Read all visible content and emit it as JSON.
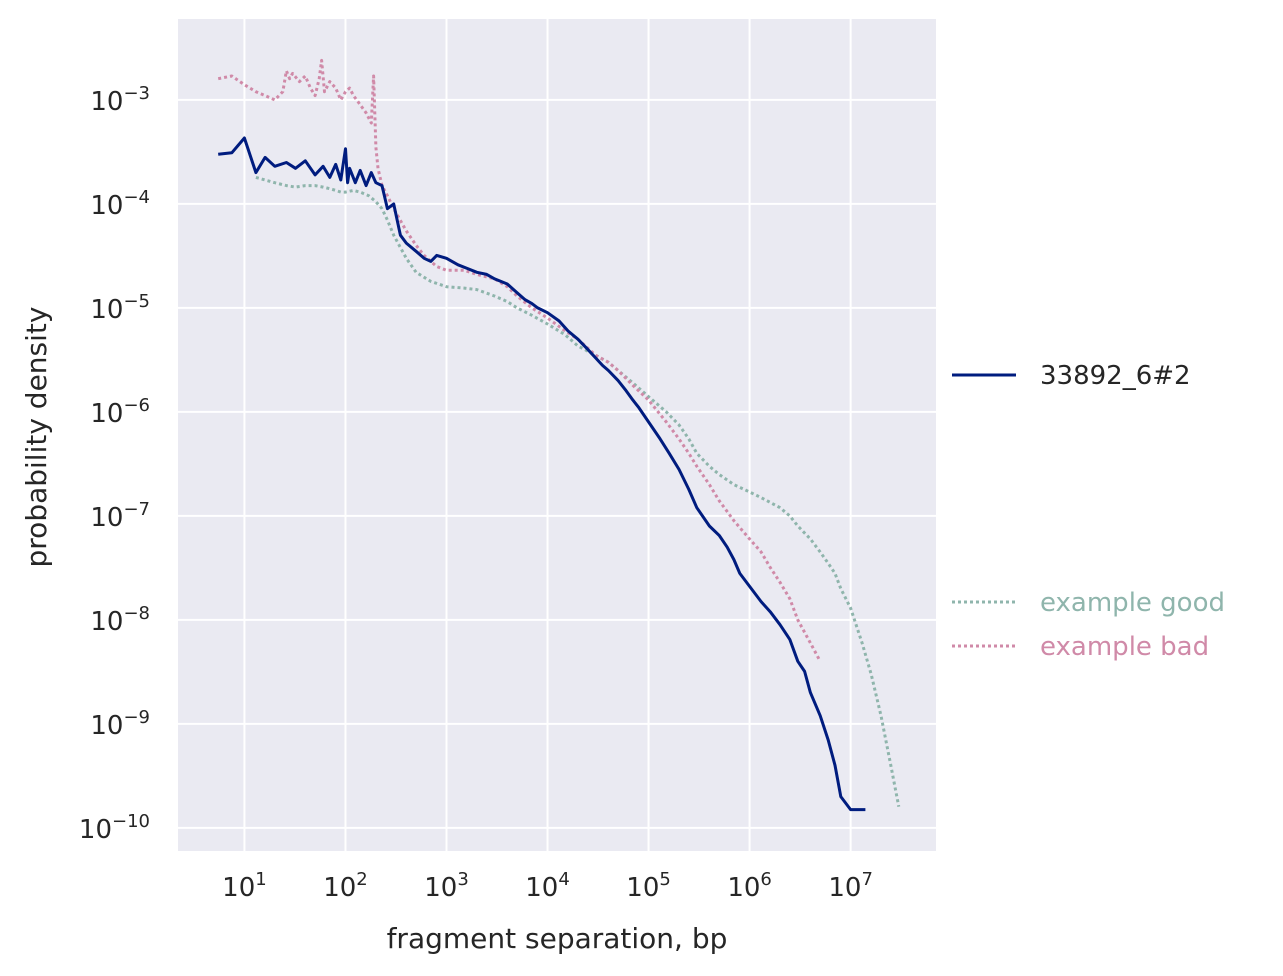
{
  "chart_data": {
    "type": "line",
    "title": "",
    "xlabel": "fragment separation, bp",
    "ylabel": "probability density",
    "xscale": "log",
    "yscale": "log",
    "xlim": [
      2.2,
      70000000
    ],
    "ylim": [
      6e-11,
      0.006
    ],
    "grid": true,
    "x_ticks": [
      {
        "base": "10",
        "exp": "1",
        "value": 10
      },
      {
        "base": "10",
        "exp": "2",
        "value": 100
      },
      {
        "base": "10",
        "exp": "3",
        "value": 1000
      },
      {
        "base": "10",
        "exp": "4",
        "value": 10000
      },
      {
        "base": "10",
        "exp": "5",
        "value": 100000
      },
      {
        "base": "10",
        "exp": "6",
        "value": 1000000
      },
      {
        "base": "10",
        "exp": "7",
        "value": 10000000
      }
    ],
    "y_ticks": [
      {
        "base": "10",
        "exp": "−10",
        "value": 1e-10
      },
      {
        "base": "10",
        "exp": "−9",
        "value": 1e-09
      },
      {
        "base": "10",
        "exp": "−8",
        "value": 1e-08
      },
      {
        "base": "10",
        "exp": "−7",
        "value": 1e-07
      },
      {
        "base": "10",
        "exp": "−6",
        "value": 1e-06
      },
      {
        "base": "10",
        "exp": "−5",
        "value": 1e-05
      },
      {
        "base": "10",
        "exp": "−4",
        "value": 0.0001
      },
      {
        "base": "10",
        "exp": "−3",
        "value": 0.001
      }
    ],
    "legend": [
      {
        "label": "33892_6#2",
        "color": "#001c7f",
        "style": "solid",
        "position": "right-middle"
      },
      {
        "label": "example good",
        "color": "#8fb5ac",
        "style": "dotted",
        "position": "right-lower"
      },
      {
        "label": "example bad",
        "color": "#d08aa8",
        "style": "dotted",
        "position": "right-lower"
      }
    ],
    "series": [
      {
        "name": "33892_6#2",
        "color": "#001c7f",
        "style": "solid",
        "x": [
          5.5,
          7.5,
          10,
          13,
          16,
          20,
          26,
          32,
          40,
          50,
          60,
          70,
          80,
          90,
          100,
          105,
          110,
          125,
          140,
          160,
          180,
          200,
          230,
          260,
          300,
          350,
          400,
          500,
          600,
          700,
          800,
          1000,
          1300,
          1600,
          2000,
          2500,
          3000,
          4000,
          5000,
          6000,
          7000,
          8000,
          10000,
          13000,
          16000,
          20000,
          25000,
          30000,
          35000,
          40000,
          50000,
          60000,
          70000,
          80000,
          100000,
          130000,
          160000,
          200000,
          250000,
          300000,
          400000,
          500000,
          600000,
          700000,
          800000,
          1000000,
          1300000,
          1600000,
          2000000,
          2500000,
          3000000,
          3500000,
          4000000,
          5000000,
          6000000,
          7000000,
          8000000,
          10000000,
          12000000,
          14000000
        ],
        "y": [
          0.0003,
          0.00031,
          0.00043,
          0.0002,
          0.00028,
          0.00023,
          0.00025,
          0.00022,
          0.00026,
          0.00019,
          0.00023,
          0.00018,
          0.00024,
          0.00017,
          0.00034,
          0.00016,
          0.00022,
          0.00016,
          0.00021,
          0.00015,
          0.0002,
          0.00016,
          0.00015,
          9e-05,
          0.0001,
          5e-05,
          4.2e-05,
          3.5e-05,
          3e-05,
          2.8e-05,
          3.2e-05,
          3e-05,
          2.6e-05,
          2.4e-05,
          2.2e-05,
          2.1e-05,
          1.9e-05,
          1.7e-05,
          1.4e-05,
          1.2e-05,
          1.1e-05,
          1e-05,
          9e-06,
          7.5e-06,
          6e-06,
          5e-06,
          4e-06,
          3.3e-06,
          2.8e-06,
          2.5e-06,
          2e-06,
          1.6e-06,
          1.3e-06,
          1.1e-06,
          8e-07,
          5.5e-07,
          4e-07,
          2.8e-07,
          1.8e-07,
          1.2e-07,
          8e-08,
          6.5e-08,
          5e-08,
          3.8e-08,
          2.8e-08,
          2.1e-08,
          1.5e-08,
          1.2e-08,
          9e-09,
          6.5e-09,
          4e-09,
          3.2e-09,
          2e-09,
          1.2e-09,
          7e-10,
          4e-10,
          2e-10,
          1.5e-10,
          1.5e-10,
          1.5e-10
        ]
      },
      {
        "name": "example good",
        "color": "#8fb5ac",
        "style": "dotted",
        "x": [
          13,
          16,
          20,
          26,
          32,
          40,
          50,
          60,
          70,
          80,
          90,
          100,
          120,
          140,
          170,
          200,
          230,
          260,
          300,
          400,
          500,
          700,
          1000,
          1500,
          2000,
          3000,
          4000,
          5000,
          7000,
          10000,
          15000,
          20000,
          30000,
          40000,
          50000,
          70000,
          100000,
          150000,
          200000,
          250000,
          300000,
          400000,
          500000,
          700000,
          1000000,
          1300000,
          1600000,
          2000000,
          2500000,
          3000000,
          4000000,
          5000000,
          6000000,
          7000000,
          8000000,
          10000000,
          13000000,
          16000000,
          20000000,
          25000000,
          30000000
        ],
        "y": [
          0.00018,
          0.00017,
          0.00016,
          0.00015,
          0.000145,
          0.00015,
          0.00015,
          0.000145,
          0.00014,
          0.000135,
          0.00013,
          0.00013,
          0.000135,
          0.00013,
          0.00012,
          0.000105,
          9e-05,
          7e-05,
          5e-05,
          3e-05,
          2.2e-05,
          1.8e-05,
          1.6e-05,
          1.55e-05,
          1.5e-05,
          1.3e-05,
          1.15e-05,
          1e-05,
          8.5e-06,
          7e-06,
          5.5e-06,
          4.3e-06,
          3.5e-06,
          3e-06,
          2.5e-06,
          1.9e-06,
          1.4e-06,
          1e-06,
          7.5e-07,
          5.5e-07,
          4e-07,
          3e-07,
          2.5e-07,
          2e-07,
          1.7e-07,
          1.5e-07,
          1.35e-07,
          1.2e-07,
          1e-07,
          8e-08,
          6e-08,
          4.5e-08,
          3.5e-08,
          2.8e-08,
          2e-08,
          1.3e-08,
          6e-09,
          3e-09,
          1.2e-09,
          4e-10,
          1.6e-10
        ]
      },
      {
        "name": "example bad",
        "color": "#d08aa8",
        "style": "dotted",
        "x": [
          5.5,
          7.5,
          10,
          13,
          16,
          20,
          24,
          26,
          28,
          30,
          35,
          40,
          45,
          50,
          55,
          58,
          62,
          70,
          80,
          90,
          100,
          110,
          120,
          140,
          160,
          180,
          190,
          200,
          210,
          230,
          260,
          300,
          400,
          500,
          600,
          700,
          800,
          1000,
          1500,
          2000,
          3000,
          4000,
          5000,
          7000,
          10000,
          15000,
          20000,
          30000,
          40000,
          50000,
          70000,
          100000,
          150000,
          200000,
          250000,
          300000,
          400000,
          500000,
          700000,
          1000000,
          1300000,
          1600000,
          2000000,
          2500000,
          3000000,
          4000000,
          5000000
        ],
        "y": [
          0.0016,
          0.0017,
          0.0014,
          0.0012,
          0.0011,
          0.001,
          0.0012,
          0.0019,
          0.0016,
          0.0018,
          0.0015,
          0.0017,
          0.0013,
          0.0011,
          0.0016,
          0.0024,
          0.0012,
          0.0015,
          0.0013,
          0.001,
          0.0012,
          0.0013,
          0.0011,
          0.0009,
          0.00075,
          0.0006,
          0.0017,
          0.00035,
          0.00022,
          0.00015,
          0.00012,
          9e-05,
          5.5e-05,
          4e-05,
          3.2e-05,
          2.8e-05,
          2.5e-05,
          2.3e-05,
          2.3e-05,
          2.1e-05,
          1.9e-05,
          1.6e-05,
          1.3e-05,
          1e-05,
          8e-06,
          6e-06,
          5e-06,
          3.5e-06,
          3e-06,
          2.5e-06,
          1.8e-06,
          1.3e-06,
          8e-07,
          5.5e-07,
          4e-07,
          3e-07,
          2e-07,
          1.4e-07,
          9e-08,
          6e-08,
          4.5e-08,
          3.2e-08,
          2.3e-08,
          1.6e-08,
          1e-08,
          6e-09,
          4e-09
        ]
      }
    ]
  }
}
